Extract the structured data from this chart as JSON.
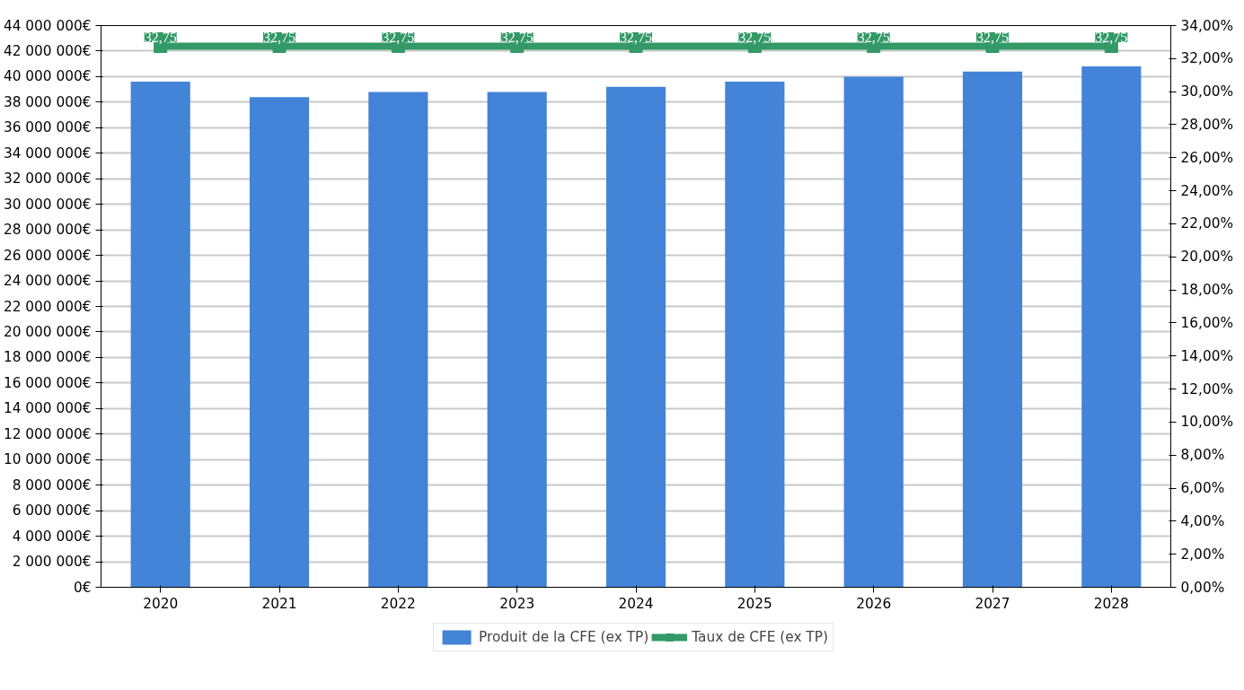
{
  "chart_data": {
    "type": "bar",
    "categories": [
      "2020",
      "2021",
      "2022",
      "2023",
      "2024",
      "2025",
      "2026",
      "2027",
      "2028"
    ],
    "series": [
      {
        "name": "Produit de la CFE (ex TP)",
        "color": "#4383d8",
        "values": [
          39600000,
          38400000,
          38800000,
          38800000,
          39200000,
          39600000,
          40000000,
          40400000,
          40800000
        ]
      },
      {
        "name": "Taux de CFE (ex TP)",
        "type": "line",
        "axis": "y2",
        "color": "#339966",
        "values": [
          32.75,
          32.75,
          32.75,
          32.75,
          32.75,
          32.75,
          32.75,
          32.75,
          32.75
        ],
        "value_labels": [
          "32,75",
          "32,75",
          "32,75",
          "32,75",
          "32,75",
          "32,75",
          "32,75",
          "32,75",
          "32,75"
        ]
      }
    ],
    "ylim": [
      0,
      44000000
    ],
    "yticks": [
      {
        "value": 0,
        "label": "0€"
      },
      {
        "value": 2000000,
        "label": "2 000 000€"
      },
      {
        "value": 4000000,
        "label": "4 000 000€"
      },
      {
        "value": 6000000,
        "label": "6 000 000€"
      },
      {
        "value": 8000000,
        "label": "8 000 000€"
      },
      {
        "value": 10000000,
        "label": "10 000 000€"
      },
      {
        "value": 12000000,
        "label": "12 000 000€"
      },
      {
        "value": 14000000,
        "label": "14 000 000€"
      },
      {
        "value": 16000000,
        "label": "16 000 000€"
      },
      {
        "value": 18000000,
        "label": "18 000 000€"
      },
      {
        "value": 20000000,
        "label": "20 000 000€"
      },
      {
        "value": 22000000,
        "label": "22 000 000€"
      },
      {
        "value": 24000000,
        "label": "24 000 000€"
      },
      {
        "value": 26000000,
        "label": "26 000 000€"
      },
      {
        "value": 28000000,
        "label": "28 000 000€"
      },
      {
        "value": 30000000,
        "label": "30 000 000€"
      },
      {
        "value": 32000000,
        "label": "32 000 000€"
      },
      {
        "value": 34000000,
        "label": "34 000 000€"
      },
      {
        "value": 36000000,
        "label": "36 000 000€"
      },
      {
        "value": 38000000,
        "label": "38 000 000€"
      },
      {
        "value": 40000000,
        "label": "40 000 000€"
      },
      {
        "value": 42000000,
        "label": "42 000 000€"
      },
      {
        "value": 44000000,
        "label": "44 000 000€"
      }
    ],
    "y2lim": [
      0,
      34
    ],
    "y2ticks": [
      {
        "value": 0,
        "label": "0,00%"
      },
      {
        "value": 2,
        "label": "2,00%"
      },
      {
        "value": 4,
        "label": "4,00%"
      },
      {
        "value": 6,
        "label": "6,00%"
      },
      {
        "value": 8,
        "label": "8,00%"
      },
      {
        "value": 10,
        "label": "10,00%"
      },
      {
        "value": 12,
        "label": "12,00%"
      },
      {
        "value": 14,
        "label": "14,00%"
      },
      {
        "value": 16,
        "label": "16,00%"
      },
      {
        "value": 18,
        "label": "18,00%"
      },
      {
        "value": 20,
        "label": "20,00%"
      },
      {
        "value": 22,
        "label": "22,00%"
      },
      {
        "value": 24,
        "label": "24,00%"
      },
      {
        "value": 26,
        "label": "26,00%"
      },
      {
        "value": 28,
        "label": "28,00%"
      },
      {
        "value": 30,
        "label": "30,00%"
      },
      {
        "value": 32,
        "label": "32,00%"
      },
      {
        "value": 34,
        "label": "34,00%"
      }
    ],
    "grid": "y",
    "legend": "bottom",
    "marker": "square",
    "line_style": "solid"
  }
}
